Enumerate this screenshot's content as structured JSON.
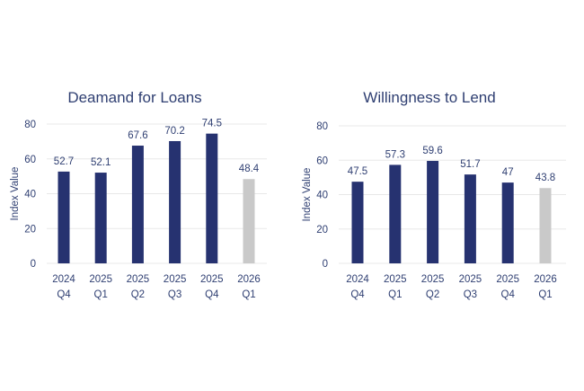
{
  "colors": {
    "bar": "#263270",
    "forecast_bar": "#c9c9c9",
    "text": "#2f3f72",
    "grid": "#e8e8e8"
  },
  "chart_data": [
    {
      "type": "bar",
      "title": "Deamand for Loans",
      "ylabel": "Index Value",
      "xlabel": "",
      "ylim": [
        0,
        80
      ],
      "yticks": [
        0,
        20,
        40,
        60,
        80
      ],
      "grid": true,
      "categories": [
        [
          "2024",
          "Q4"
        ],
        [
          "2025",
          "Q1"
        ],
        [
          "2025",
          "Q2"
        ],
        [
          "2025",
          "Q3"
        ],
        [
          "2025",
          "Q4"
        ],
        [
          "2026",
          "Q1"
        ]
      ],
      "values": [
        52.7,
        52.1,
        67.6,
        70.2,
        74.5,
        48.4
      ],
      "labels": [
        "52.7",
        "52.1",
        "67.6",
        "70.2",
        "74.5",
        "48.4"
      ],
      "forecast": [
        false,
        false,
        false,
        false,
        false,
        true
      ]
    },
    {
      "type": "bar",
      "title": "Willingness to Lend",
      "ylabel": "Index Value",
      "xlabel": "",
      "ylim": [
        0,
        80
      ],
      "yticks": [
        0,
        20,
        40,
        60,
        80
      ],
      "grid": true,
      "categories": [
        [
          "2024",
          "Q4"
        ],
        [
          "2025",
          "Q1"
        ],
        [
          "2025",
          "Q2"
        ],
        [
          "2025",
          "Q3"
        ],
        [
          "2025",
          "Q4"
        ],
        [
          "2026",
          "Q1"
        ]
      ],
      "values": [
        47.5,
        57.3,
        59.6,
        51.7,
        47,
        43.8
      ],
      "labels": [
        "47.5",
        "57.3",
        "59.6",
        "51.7",
        "47",
        "43.8"
      ],
      "forecast": [
        false,
        false,
        false,
        false,
        false,
        true
      ]
    }
  ]
}
